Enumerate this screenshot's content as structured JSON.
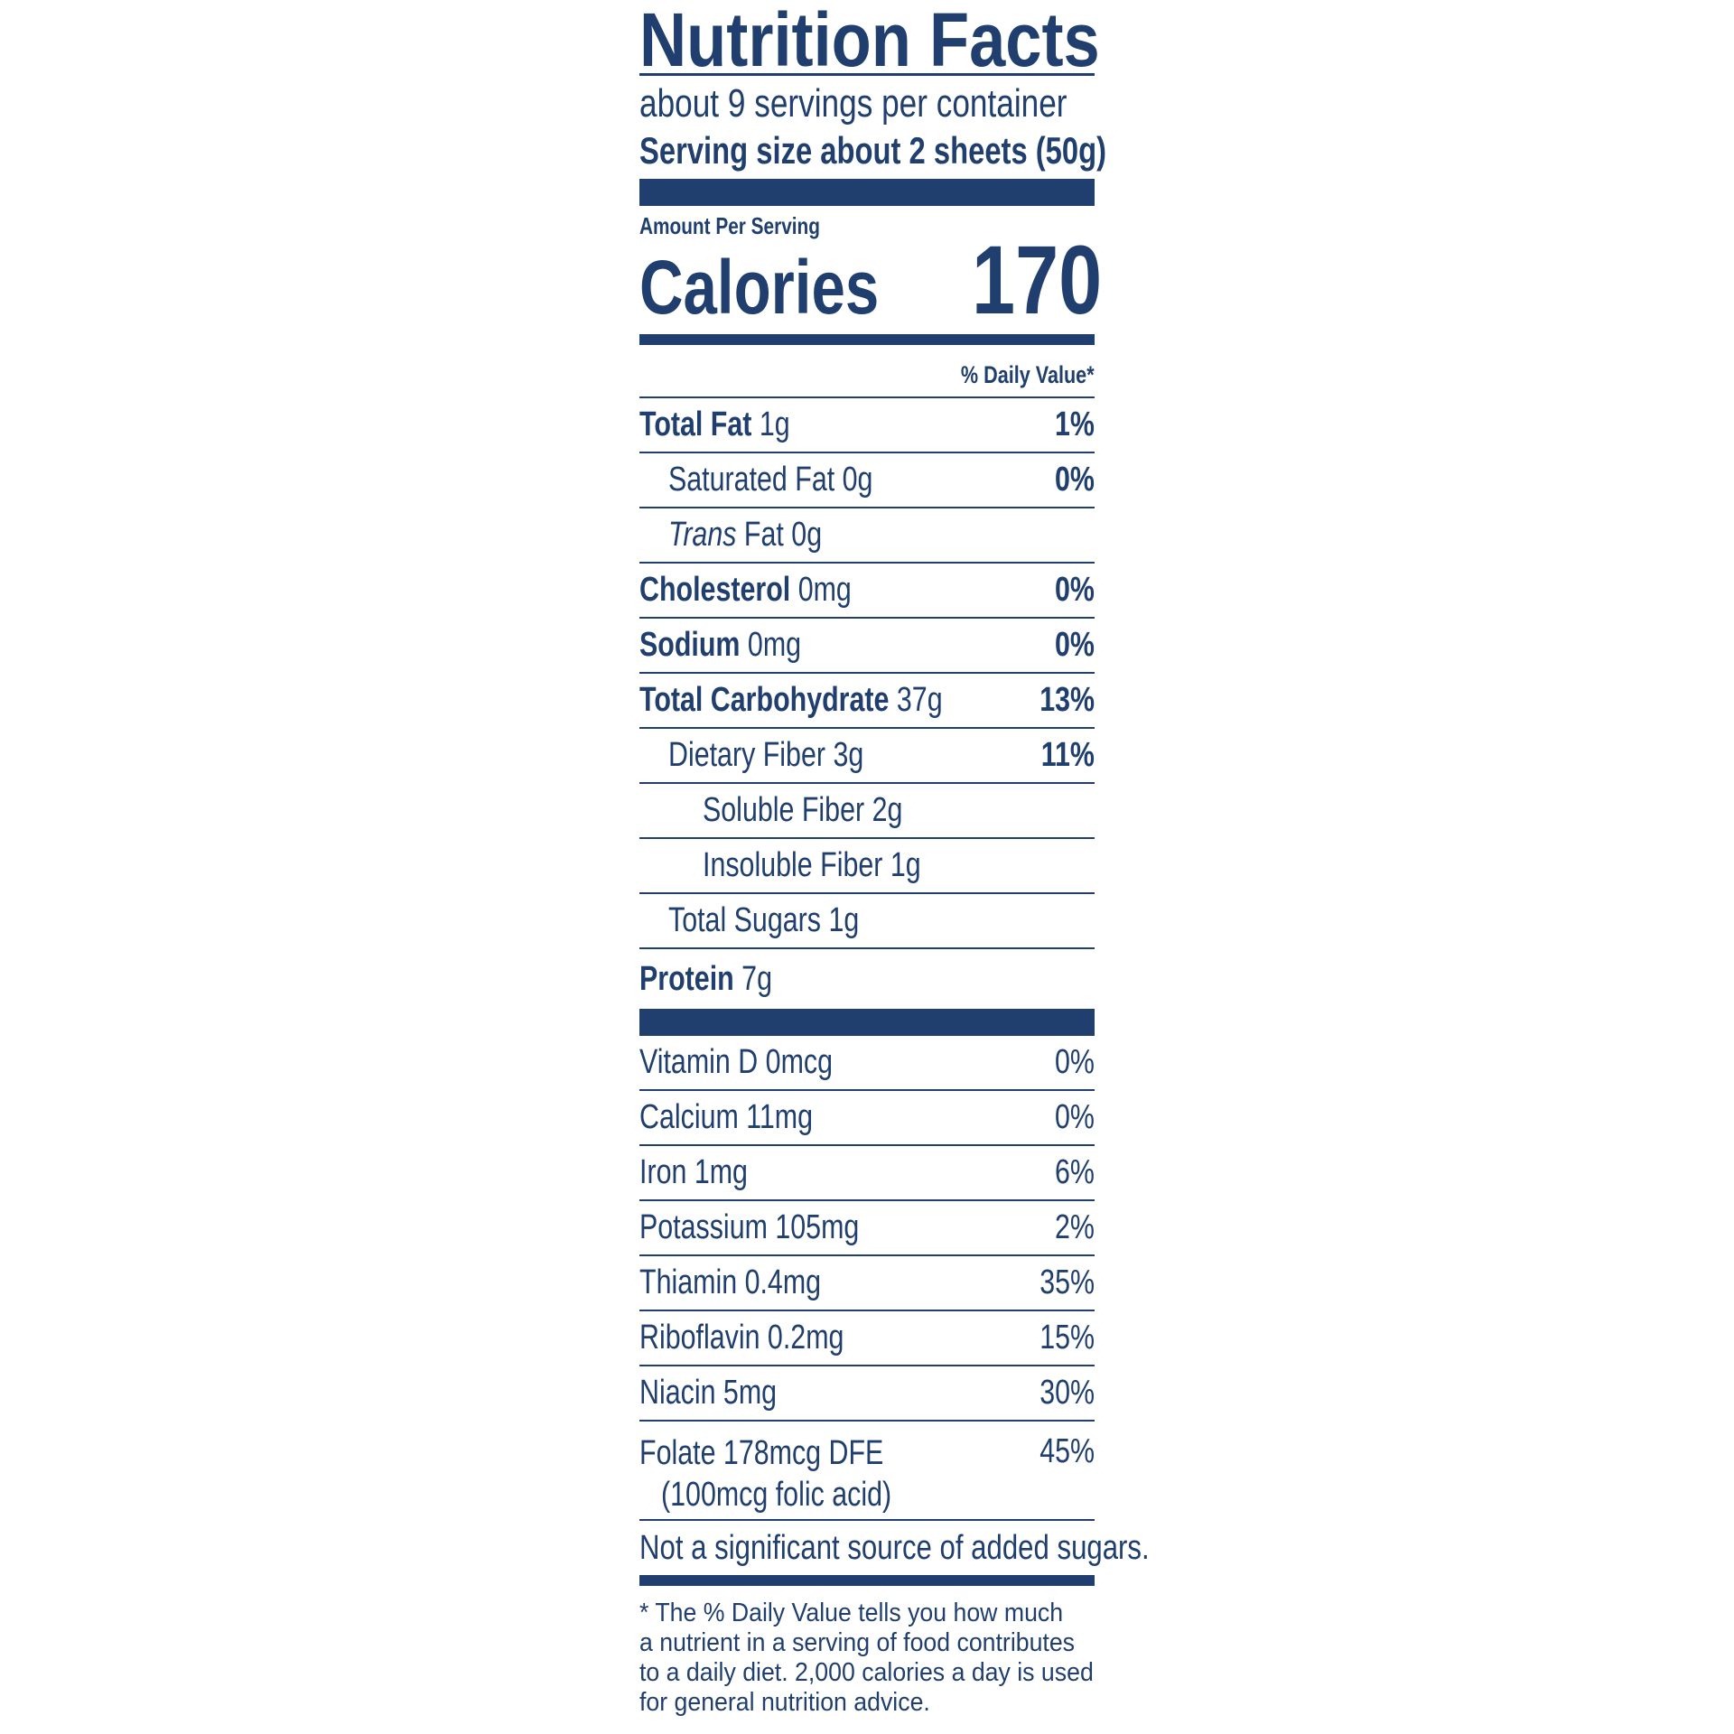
{
  "title": "Nutrition Facts",
  "servings_per_container": "about 9 servings per container",
  "serving_size": "Serving size about 2 sheets (50g)",
  "amount_per_serving": "Amount Per Serving",
  "calories_label": "Calories",
  "calories_value": "170",
  "daily_value_header": "% Daily Value*",
  "nutrients": [
    {
      "name": "Total Fat",
      "amount": "1g",
      "dv": "1%",
      "bold": true,
      "indent": 0
    },
    {
      "name": "Saturated Fat",
      "amount": "0g",
      "dv": "0%",
      "bold": false,
      "indent": 1
    },
    {
      "name_italic": "Trans",
      "name": "Fat",
      "amount": "0g",
      "dv": "",
      "bold": false,
      "indent": 1
    },
    {
      "name": "Cholesterol",
      "amount": "0mg",
      "dv": "0%",
      "bold": true,
      "indent": 0
    },
    {
      "name": "Sodium",
      "amount": "0mg",
      "dv": "0%",
      "bold": true,
      "indent": 0
    },
    {
      "name": "Total Carbohydrate",
      "amount": "37g",
      "dv": "13%",
      "bold": true,
      "indent": 0
    },
    {
      "name": "Dietary Fiber",
      "amount": "3g",
      "dv": "11%",
      "bold": false,
      "indent": 1
    },
    {
      "name": "Soluble Fiber",
      "amount": "2g",
      "dv": "",
      "bold": false,
      "indent": 2
    },
    {
      "name": "Insoluble Fiber",
      "amount": "1g",
      "dv": "",
      "bold": false,
      "indent": 2
    },
    {
      "name": "Total Sugars",
      "amount": "1g",
      "dv": "",
      "bold": false,
      "indent": 1
    },
    {
      "name": "Protein",
      "amount": "7g",
      "dv": "",
      "bold": true,
      "indent": 0
    }
  ],
  "vitamins": [
    {
      "label": "Vitamin D 0mcg",
      "dv": "0%"
    },
    {
      "label": "Calcium 11mg",
      "dv": "0%"
    },
    {
      "label": "Iron 1mg",
      "dv": "6%"
    },
    {
      "label": "Potassium 105mg",
      "dv": "2%"
    },
    {
      "label": "Thiamin 0.4mg",
      "dv": "35%"
    },
    {
      "label": "Riboflavin 0.2mg",
      "dv": "15%"
    },
    {
      "label": "Niacin 5mg",
      "dv": "30%"
    },
    {
      "label": "Folate 178mcg DFE",
      "sublabel": "(100mcg folic acid)",
      "dv": "45%"
    }
  ],
  "added_sugars_note": "Not a significant source of added sugars.",
  "footnote_lines": [
    "* The % Daily Value tells you how much",
    "a nutrient in a serving of food contributes",
    "to a daily diet. 2,000 calories a day is used",
    "for general nutrition advice."
  ],
  "colors": {
    "ink": "#203f6e",
    "background": "#ffffff"
  }
}
